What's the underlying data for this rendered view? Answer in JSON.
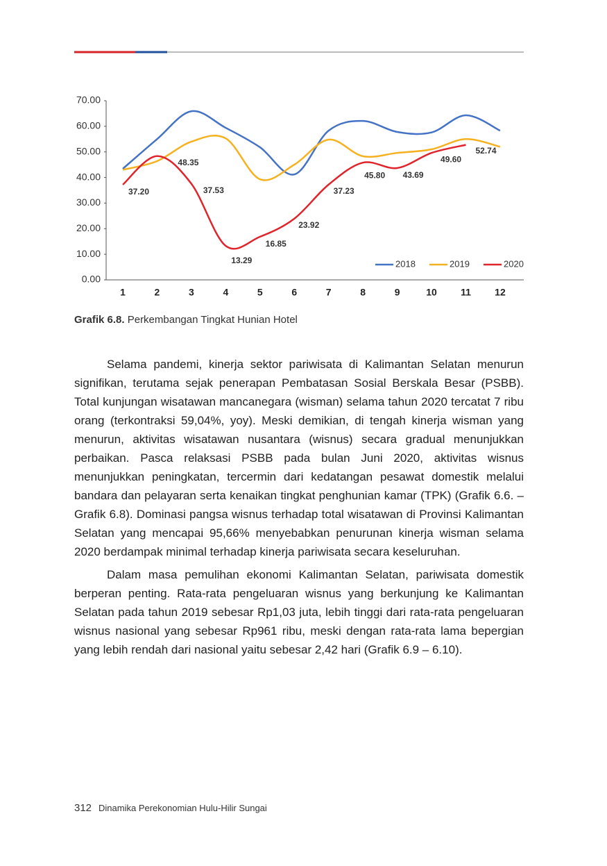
{
  "chart_data": {
    "type": "line",
    "categories": [
      "1",
      "2",
      "3",
      "4",
      "5",
      "6",
      "7",
      "8",
      "9",
      "10",
      "11",
      "12"
    ],
    "series": [
      {
        "name": "2018",
        "color": "#4472c4",
        "values": [
          43.4,
          55,
          65.9,
          59.4,
          51.8,
          41.2,
          58.3,
          62.1,
          57.8,
          57.6,
          64.3,
          58.3
        ]
      },
      {
        "name": "2019",
        "color": "#f5b120",
        "values": [
          43,
          46.4,
          54,
          55.3,
          39.3,
          45,
          54.8,
          48.3,
          49.6,
          51,
          55,
          52
        ]
      },
      {
        "name": "2020",
        "color": "#e0242b",
        "values": [
          37.2,
          48.35,
          37.53,
          13.29,
          16.85,
          23.92,
          37.23,
          45.8,
          43.69,
          49.6,
          52.74,
          null
        ],
        "value_labels": [
          "37.20",
          "48.35",
          "37.53",
          "13.29",
          "16.85",
          "23.92",
          "37.23",
          "45.80",
          "43.69",
          "49.60",
          "52.74",
          null
        ]
      }
    ],
    "ylim": [
      0,
      70
    ],
    "yticks": [
      {
        "value": 0,
        "label": "0.00"
      },
      {
        "value": 10,
        "label": "10.00"
      },
      {
        "value": 20,
        "label": "20.00"
      },
      {
        "value": 30,
        "label": "30.00"
      },
      {
        "value": 40,
        "label": "40.00"
      },
      {
        "value": 50,
        "label": "50.00"
      },
      {
        "value": 60,
        "label": "60.00"
      },
      {
        "value": 70,
        "label": "70.00"
      }
    ],
    "legend": "lower right"
  },
  "caption": {
    "label": "Grafik 6.8.",
    "text": "Perkembangan Tingkat Hunian Hotel"
  },
  "body": {
    "paragraphs": [
      "Selama pandemi, kinerja sektor pariwisata di Kalimantan Selatan menurun signifikan, terutama sejak penerapan Pembatasan Sosial Berskala Besar (PSBB). Total kunjungan wisatawan mancanegara (wisman) selama tahun 2020 tercatat 7 ribu orang (terkontraksi 59,04%, yoy). Meski demikian, di tengah kinerja wisman yang menurun, aktivitas wisatawan nusantara (wisnus) secara gradual menunjukkan perbaikan. Pasca relaksasi PSBB pada bulan Juni 2020, aktivitas wisnus menunjukkan peningkatan, tercermin dari kedatangan pesawat domestik melalui bandara dan pelayaran serta kenaikan tingkat penghunian kamar (TPK) (Grafik 6.6. – Grafik 6.8). Dominasi pangsa wisnus terhadap total wisatawan di Provinsi Kalimantan Selatan yang mencapai 95,66% menyebabkan penurunan kinerja wisman selama 2020 berdampak minimal terhadap kinerja pariwisata secara keseluruhan.",
      "Dalam masa pemulihan ekonomi Kalimantan Selatan, pariwisata domestik berperan penting. Rata-rata pengeluaran wisnus yang berkunjung ke Kalimantan Selatan pada tahun 2019 sebesar Rp1,03 juta, lebih tinggi dari rata-rata pengeluaran wisnus nasional yang sebesar Rp961 ribu, meski dengan rata-rata lama bepergian yang lebih rendah dari nasional yaitu sebesar 2,42 hari (Grafik 6.9 – 6.10)."
    ]
  },
  "footer": {
    "page": "312",
    "title": "Dinamika Perekonomian Hulu-Hilir Sungai"
  }
}
